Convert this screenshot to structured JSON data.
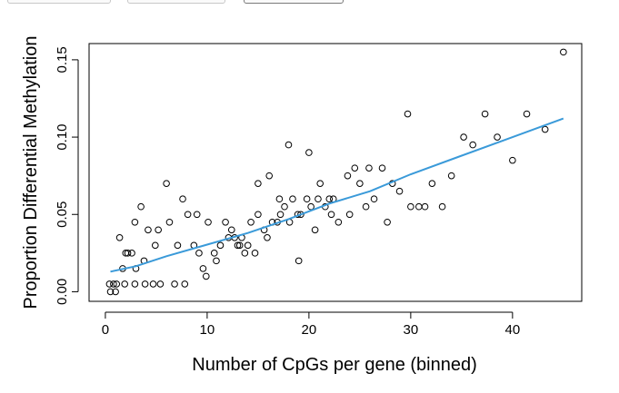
{
  "toolbar": {
    "buttons": [
      {
        "name": "toolbar-button-1"
      },
      {
        "name": "toolbar-button-2"
      },
      {
        "name": "toolbar-button-3"
      }
    ]
  },
  "chart_data": {
    "type": "scatter",
    "title": "",
    "xlabel": "Number of CpGs per gene (binned)",
    "ylabel": "Proportion Differential Methylation",
    "xlim": [
      -1.6,
      46.8
    ],
    "ylim": [
      -0.0062,
      0.1605
    ],
    "x_ticks": [
      0,
      10,
      20,
      30,
      40
    ],
    "y_ticks": [
      0.0,
      0.05,
      0.1,
      0.15
    ],
    "x_tick_labels": [
      "0",
      "10",
      "20",
      "30",
      "40"
    ],
    "y_tick_labels": [
      "0.00",
      "0.05",
      "0.10",
      "0.15"
    ],
    "grid": false,
    "point_style": "open-circle",
    "colors": {
      "points": "#000000",
      "trend": "#3a9ad9",
      "axis": "#000000"
    },
    "points": [
      [
        0.4,
        0.005
      ],
      [
        0.5,
        0.0
      ],
      [
        0.8,
        0.005
      ],
      [
        1.0,
        0.0
      ],
      [
        1.1,
        0.005
      ],
      [
        1.4,
        0.035
      ],
      [
        1.7,
        0.015
      ],
      [
        1.9,
        0.005
      ],
      [
        2.0,
        0.025
      ],
      [
        2.2,
        0.025
      ],
      [
        2.6,
        0.025
      ],
      [
        2.9,
        0.045
      ],
      [
        2.9,
        0.005
      ],
      [
        3.0,
        0.015
      ],
      [
        3.5,
        0.055
      ],
      [
        3.9,
        0.005
      ],
      [
        3.8,
        0.02
      ],
      [
        4.2,
        0.04
      ],
      [
        4.7,
        0.005
      ],
      [
        4.9,
        0.03
      ],
      [
        5.2,
        0.04
      ],
      [
        5.4,
        0.005
      ],
      [
        6.0,
        0.07
      ],
      [
        6.3,
        0.045
      ],
      [
        6.8,
        0.005
      ],
      [
        7.1,
        0.03
      ],
      [
        7.6,
        0.06
      ],
      [
        7.8,
        0.005
      ],
      [
        8.1,
        0.05
      ],
      [
        8.7,
        0.03
      ],
      [
        9.0,
        0.05
      ],
      [
        9.2,
        0.025
      ],
      [
        9.6,
        0.015
      ],
      [
        9.9,
        0.01
      ],
      [
        10.1,
        0.045
      ],
      [
        10.7,
        0.025
      ],
      [
        10.9,
        0.02
      ],
      [
        11.3,
        0.03
      ],
      [
        11.8,
        0.045
      ],
      [
        12.1,
        0.035
      ],
      [
        12.4,
        0.04
      ],
      [
        12.7,
        0.035
      ],
      [
        13.0,
        0.03
      ],
      [
        13.2,
        0.03
      ],
      [
        13.4,
        0.035
      ],
      [
        13.7,
        0.025
      ],
      [
        14.0,
        0.03
      ],
      [
        14.3,
        0.045
      ],
      [
        14.7,
        0.025
      ],
      [
        15.0,
        0.05
      ],
      [
        15.0,
        0.07
      ],
      [
        15.6,
        0.04
      ],
      [
        15.9,
        0.035
      ],
      [
        16.1,
        0.075
      ],
      [
        16.4,
        0.045
      ],
      [
        16.9,
        0.045
      ],
      [
        17.1,
        0.06
      ],
      [
        17.2,
        0.05
      ],
      [
        17.6,
        0.055
      ],
      [
        18.0,
        0.095
      ],
      [
        18.1,
        0.045
      ],
      [
        18.4,
        0.06
      ],
      [
        18.9,
        0.05
      ],
      [
        19.0,
        0.02
      ],
      [
        19.2,
        0.05
      ],
      [
        19.8,
        0.06
      ],
      [
        20.0,
        0.09
      ],
      [
        20.2,
        0.055
      ],
      [
        20.6,
        0.04
      ],
      [
        20.9,
        0.06
      ],
      [
        21.1,
        0.07
      ],
      [
        21.6,
        0.055
      ],
      [
        22.0,
        0.06
      ],
      [
        22.2,
        0.05
      ],
      [
        22.4,
        0.06
      ],
      [
        22.9,
        0.045
      ],
      [
        23.8,
        0.075
      ],
      [
        24.0,
        0.05
      ],
      [
        24.5,
        0.08
      ],
      [
        25.0,
        0.07
      ],
      [
        25.6,
        0.055
      ],
      [
        25.9,
        0.08
      ],
      [
        26.4,
        0.06
      ],
      [
        27.2,
        0.08
      ],
      [
        27.7,
        0.045
      ],
      [
        28.2,
        0.07
      ],
      [
        28.9,
        0.065
      ],
      [
        29.7,
        0.115
      ],
      [
        30.0,
        0.055
      ],
      [
        30.8,
        0.055
      ],
      [
        31.4,
        0.055
      ],
      [
        32.1,
        0.07
      ],
      [
        33.1,
        0.055
      ],
      [
        34.0,
        0.075
      ],
      [
        35.2,
        0.1
      ],
      [
        36.1,
        0.095
      ],
      [
        37.3,
        0.115
      ],
      [
        38.5,
        0.1
      ],
      [
        40.0,
        0.085
      ],
      [
        41.4,
        0.115
      ],
      [
        43.2,
        0.105
      ],
      [
        45.0,
        0.155
      ]
    ],
    "trend": [
      [
        0.5,
        0.013
      ],
      [
        3,
        0.0165
      ],
      [
        6,
        0.023
      ],
      [
        10,
        0.0305
      ],
      [
        14,
        0.038
      ],
      [
        18,
        0.047
      ],
      [
        22,
        0.057
      ],
      [
        26,
        0.065
      ],
      [
        30,
        0.076
      ],
      [
        35,
        0.088
      ],
      [
        40,
        0.1
      ],
      [
        45,
        0.112
      ]
    ]
  }
}
